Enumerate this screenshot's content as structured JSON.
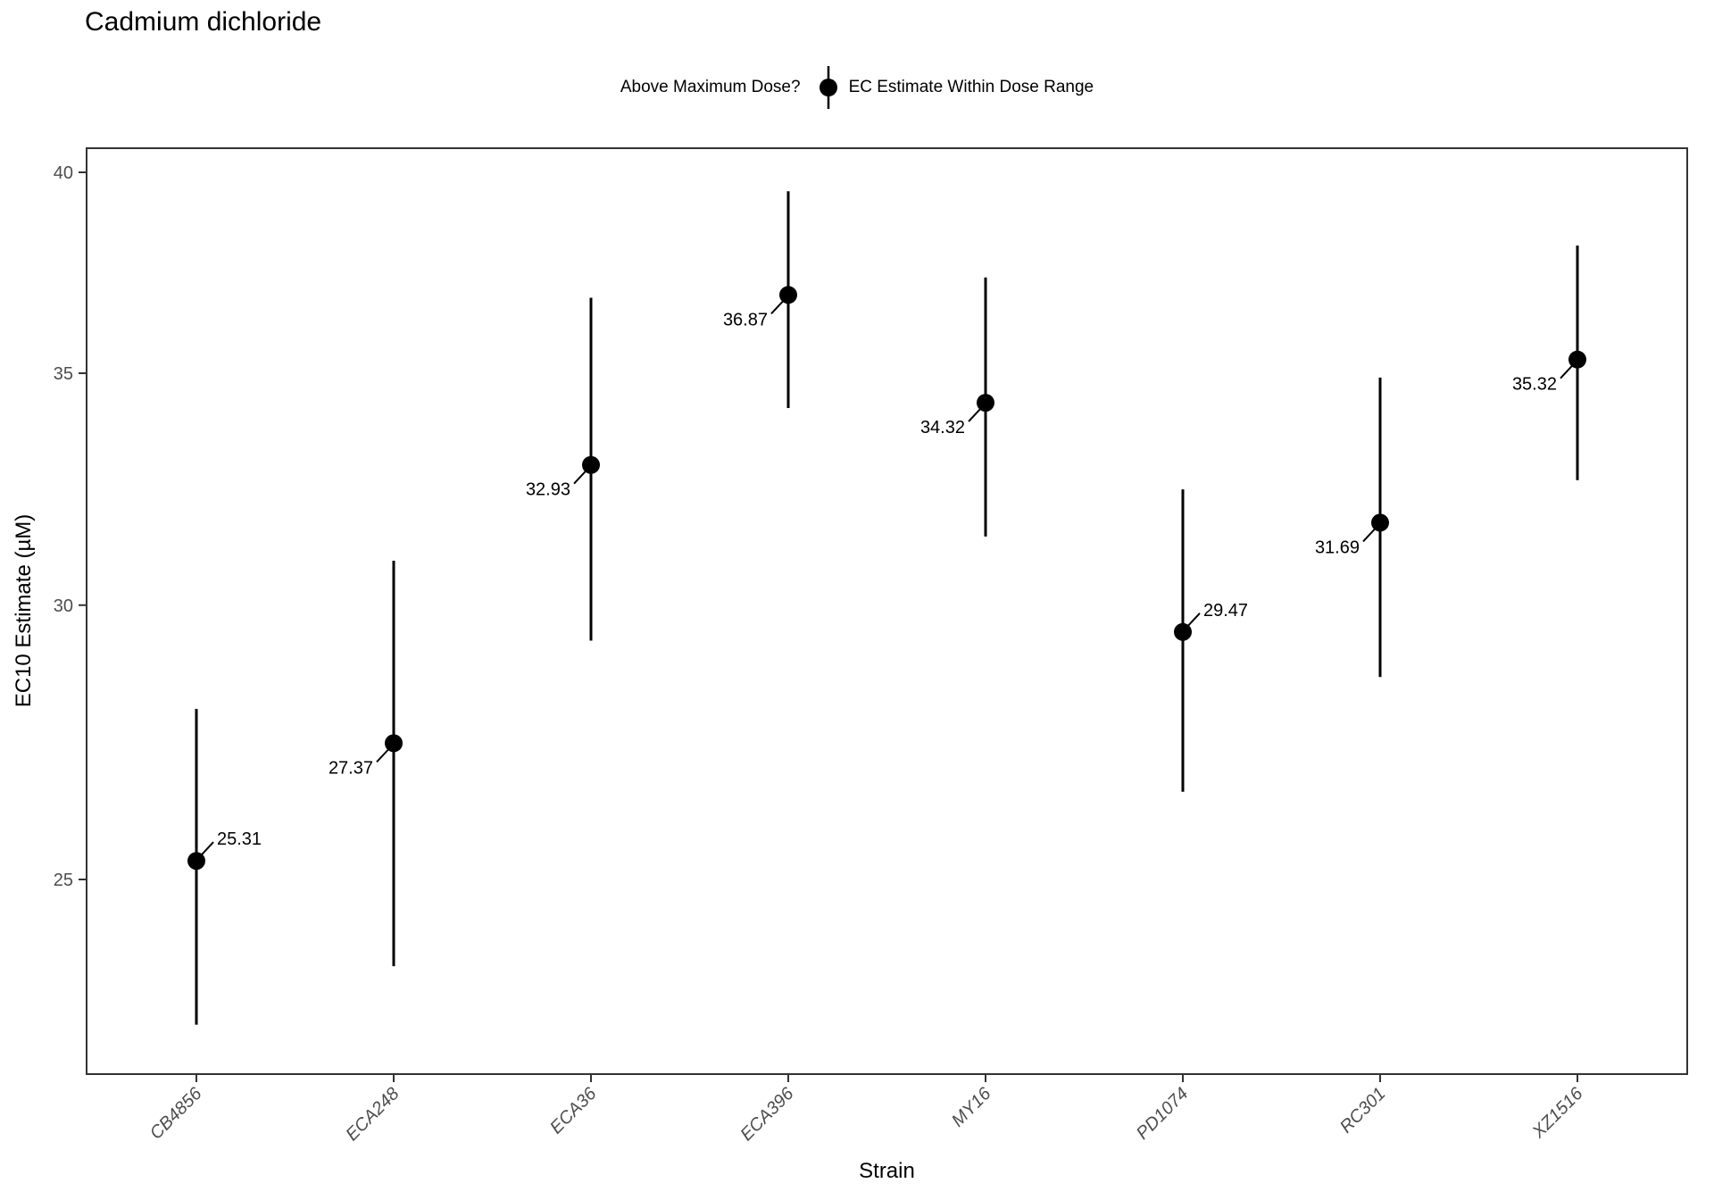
{
  "chart_data": {
    "type": "scatter",
    "title": "Cadmium dichloride",
    "xlabel": "Strain",
    "ylabel": "EC10 Estimate (µM)",
    "y_scale": "log10",
    "y_ticks": [
      25,
      30,
      35,
      40
    ],
    "y_range_approx": [
      22.0,
      40.6
    ],
    "grid": "off",
    "legend": {
      "position": "top-center",
      "title": "Above Maximum Dose?",
      "entries": [
        {
          "symbol": "point-with-errorbar",
          "label": "EC Estimate Within Dose Range"
        }
      ]
    },
    "colors": {
      "point": "#000000",
      "error_bar": "#000000",
      "axis_text": "#4d4d4d",
      "panel_border": "#333333",
      "tick_mark": "#333333"
    },
    "series": [
      {
        "name": "EC Estimate Within Dose Range",
        "points": [
          {
            "strain": "CB4856",
            "estimate": 25.31,
            "label": "25.31",
            "ci_low": 22.7,
            "ci_high": 28.0,
            "label_side": "upper-right"
          },
          {
            "strain": "ECA248",
            "estimate": 27.37,
            "label": "27.37",
            "ci_low": 23.6,
            "ci_high": 30.9,
            "label_side": "lower-left"
          },
          {
            "strain": "ECA36",
            "estimate": 32.93,
            "label": "32.93",
            "ci_low": 29.3,
            "ci_high": 36.8,
            "label_side": "lower-left"
          },
          {
            "strain": "ECA396",
            "estimate": 36.87,
            "label": "36.87",
            "ci_low": 34.2,
            "ci_high": 39.5,
            "label_side": "lower-left"
          },
          {
            "strain": "MY16",
            "estimate": 34.32,
            "label": "34.32",
            "ci_low": 31.4,
            "ci_high": 37.3,
            "label_side": "lower-left"
          },
          {
            "strain": "PD1074",
            "estimate": 29.47,
            "label": "29.47",
            "ci_low": 26.5,
            "ci_high": 32.4,
            "label_side": "upper-right"
          },
          {
            "strain": "RC301",
            "estimate": 31.69,
            "label": "31.69",
            "ci_low": 28.6,
            "ci_high": 34.9,
            "label_side": "lower-left"
          },
          {
            "strain": "XZ1516",
            "estimate": 35.32,
            "label": "35.32",
            "ci_low": 32.6,
            "ci_high": 38.1,
            "label_side": "lower-left"
          }
        ]
      }
    ]
  }
}
